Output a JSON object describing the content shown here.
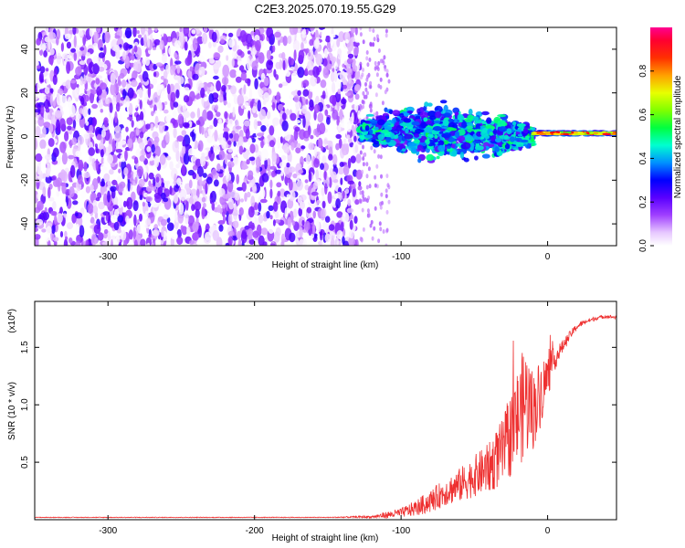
{
  "title": "C2E3.2025.070.19.55.G29",
  "chart_data": [
    {
      "type": "heatmap",
      "xlabel": "Height of straight line (km)",
      "ylabel": "Frequency (Hz)",
      "xlim": [
        -350,
        47
      ],
      "ylim": [
        -50,
        50
      ],
      "xticks": [
        -300,
        -200,
        -100,
        0
      ],
      "yticks": [
        -40,
        -20,
        0,
        20,
        40
      ],
      "grid": false,
      "colorbar": {
        "label": "Normalized spectral amplitude",
        "range": [
          0.0,
          1.0
        ],
        "ticks": [
          0.0,
          0.2,
          0.4,
          0.6,
          0.8
        ],
        "colormap": [
          "#ffffff",
          "#d9a6ff",
          "#a040ff",
          "#6000ff",
          "#0000ff",
          "#00a0ff",
          "#00ffc0",
          "#00ff40",
          "#a0ff00",
          "#ffff00",
          "#ff8000",
          "#ff0000",
          "#ff0080"
        ]
      },
      "regions": [
        {
          "x_range": [
            -350,
            -128
          ],
          "description_values": {
            "freq_range": [
              -50,
              50
            ],
            "amplitude_range": [
              0.0,
              0.3
            ]
          }
        },
        {
          "x_range": [
            -128,
            -10
          ],
          "center_freq": [
            3,
            0
          ],
          "freq_spread": [
            4,
            10
          ],
          "amplitude_range": [
            0.2,
            0.5
          ]
        },
        {
          "x_range": [
            -10,
            47
          ],
          "center_freq": [
            1.5,
            1.5
          ],
          "freq_spread": [
            1,
            1
          ],
          "amplitude_range": [
            0.6,
            0.95
          ]
        }
      ]
    },
    {
      "type": "line",
      "xlabel": "Height of straight line (km)",
      "ylabel": "SNR (10 * v/v)",
      "y_multiplier": "(x10",
      "y_multiplier_exp": "4",
      "xlim": [
        -350,
        47
      ],
      "ylim": [
        0,
        1.9
      ],
      "xticks": [
        -300,
        -200,
        -100,
        0
      ],
      "yticks": [
        "0.5",
        "1.0",
        "1.5"
      ],
      "grid": false,
      "series": [
        {
          "color": "#ee3030",
          "x": [
            -350,
            -300,
            -250,
            -200,
            -150,
            -120,
            -110,
            -100,
            -90,
            -80,
            -70,
            -60,
            -50,
            -40,
            -30,
            -20,
            -15,
            -10,
            -5,
            0,
            5,
            10,
            15,
            20,
            25,
            30,
            35,
            40,
            47
          ],
          "y": [
            0.02,
            0.02,
            0.02,
            0.02,
            0.02,
            0.025,
            0.04,
            0.06,
            0.1,
            0.16,
            0.24,
            0.3,
            0.38,
            0.45,
            0.6,
            0.9,
            1.05,
            0.95,
            1.1,
            1.25,
            1.4,
            1.5,
            1.6,
            1.68,
            1.72,
            1.74,
            1.76,
            1.77,
            1.76
          ],
          "noise_amplitude": [
            0.003,
            0.003,
            0.003,
            0.003,
            0.003,
            0.01,
            0.03,
            0.04,
            0.07,
            0.1,
            0.12,
            0.15,
            0.18,
            0.22,
            0.3,
            0.45,
            0.5,
            0.35,
            0.3,
            0.2,
            0.1,
            0.06,
            0.04,
            0.03,
            0.02,
            0.02,
            0.015,
            0.015,
            0.015
          ]
        }
      ]
    }
  ]
}
